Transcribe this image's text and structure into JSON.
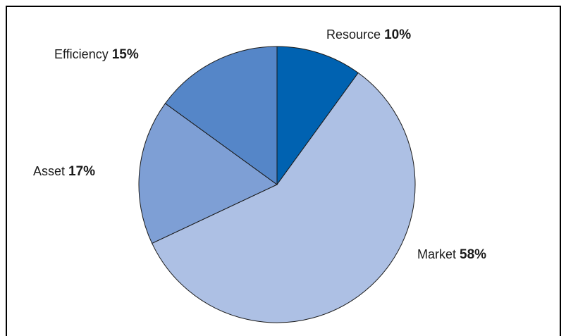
{
  "chart_data": {
    "type": "pie",
    "categories": [
      "Resource",
      "Market",
      "Asset",
      "Efficiency"
    ],
    "values": [
      10,
      58,
      17,
      15
    ],
    "value_labels": [
      "10%",
      "58%",
      "17%",
      "15%"
    ],
    "colors": [
      "#0062b1",
      "#adc0e4",
      "#7e9fd5",
      "#5586c8"
    ]
  }
}
